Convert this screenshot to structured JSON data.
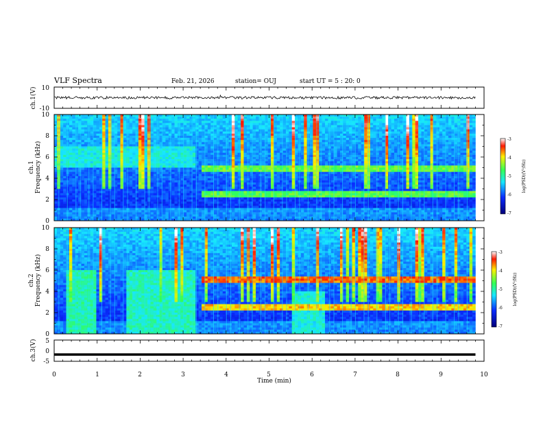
{
  "header": {
    "title": "VLF Spectra",
    "date": "Feb. 21, 2026",
    "station": "station= OUJ",
    "start": "start  UT =   5 : 20: 0"
  },
  "colors": {
    "deep": "#00007a",
    "blue": "#0a2cff",
    "cyan": "#17e6ff",
    "green": "#33ff55",
    "yellow": "#ffee00",
    "red": "#ff1a00",
    "trace": "#000000"
  },
  "chart_data": [
    {
      "type": "line",
      "name": "ch1-waveform",
      "ylabel": "ch.1(V)",
      "ylim": [
        -10,
        10
      ],
      "yticks": [
        "10",
        "-10"
      ],
      "xlim": [
        0,
        10
      ],
      "baseline": 0,
      "noise_amplitude": 1.2
    },
    {
      "type": "heatmap",
      "name": "ch1-spectrogram",
      "ylabel_channel": "ch.1",
      "ylabel": "Frequency (kHz)",
      "ylim": [
        0,
        10
      ],
      "yticks": [
        "0",
        "2",
        "4",
        "6",
        "8",
        "10"
      ],
      "xlim": [
        0,
        10
      ],
      "data_end_min": 9.8,
      "colorbar": {
        "range": [
          -7,
          -3
        ],
        "ticks": [
          "-3",
          "-4",
          "-5",
          "-6",
          "-7"
        ],
        "label": "log(PSD)(V²/Hz)"
      },
      "features": [
        {
          "kind": "band",
          "khz": [
            4.6,
            5.2
          ],
          "from_min": 3.4,
          "to_min": 9.8,
          "level": 0.62
        },
        {
          "kind": "band",
          "khz": [
            2.2,
            2.7
          ],
          "from_min": 3.4,
          "to_min": 9.8,
          "level": 0.6
        },
        {
          "kind": "band",
          "khz": [
            5.0,
            7.0
          ],
          "from_min": 0.0,
          "to_min": 3.3,
          "level": 0.45
        }
      ]
    },
    {
      "type": "heatmap",
      "name": "ch2-spectrogram",
      "ylabel_channel": "ch.2",
      "ylabel": "Frequency (kHz)",
      "ylim": [
        0,
        10
      ],
      "yticks": [
        "0",
        "2",
        "4",
        "6",
        "8",
        "10"
      ],
      "xlim": [
        0,
        10
      ],
      "data_end_min": 9.8,
      "colorbar": {
        "range": [
          -7,
          -3
        ],
        "ticks": [
          "-3",
          "-4",
          "-5",
          "-6",
          "-7"
        ],
        "label": "log(PSD)(V²/Hz)"
      },
      "features": [
        {
          "kind": "band",
          "khz": [
            4.8,
            5.4
          ],
          "from_min": 3.4,
          "to_min": 9.8,
          "level": 0.85
        },
        {
          "kind": "band",
          "khz": [
            2.3,
            2.8
          ],
          "from_min": 3.4,
          "to_min": 9.8,
          "level": 0.78
        },
        {
          "kind": "block",
          "khz": [
            0.0,
            6.0
          ],
          "from_min": 0.3,
          "to_min": 1.0,
          "level": 0.5
        },
        {
          "kind": "block",
          "khz": [
            0.0,
            6.0
          ],
          "from_min": 1.65,
          "to_min": 3.3,
          "level": 0.48
        },
        {
          "kind": "block",
          "khz": [
            0.0,
            4.0
          ],
          "from_min": 5.55,
          "to_min": 6.3,
          "level": 0.45
        }
      ]
    },
    {
      "type": "line",
      "name": "ch3-waveform",
      "ylabel": "ch.3(V)",
      "ylim": [
        -5,
        5
      ],
      "yticks": [
        "5",
        "0",
        "-5"
      ],
      "xlim": [
        0,
        10
      ],
      "baseline": -1.8,
      "xlabel": "Time (min)",
      "xticks": [
        "0",
        "1",
        "2",
        "3",
        "4",
        "5",
        "6",
        "7",
        "8",
        "9",
        "10"
      ]
    }
  ]
}
